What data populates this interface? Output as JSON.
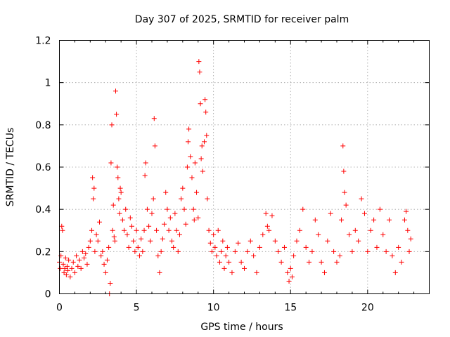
{
  "chart_data": {
    "type": "scatter",
    "title": "Day 307 of 2025, SRMTID for receiver palm",
    "xlabel": "GPS time / hours",
    "ylabel": "SRMTID / TECUs",
    "xlim": [
      0,
      24
    ],
    "ylim": [
      0,
      1.2
    ],
    "xticks": [
      0,
      5,
      10,
      15,
      20
    ],
    "xtick_labels": [
      "0",
      "5",
      "10",
      "15",
      "20"
    ],
    "yticks": [
      0,
      0.2,
      0.4,
      0.6,
      0.8,
      1.0,
      1.2
    ],
    "ytick_labels": [
      "0",
      "0.2",
      "0.4",
      "0.6",
      "0.8",
      "1",
      "1.2"
    ],
    "grid": true,
    "marker": "plus",
    "color": "#ff0000",
    "series": [
      {
        "name": "SRMTID",
        "points": [
          [
            0.0,
            0.15
          ],
          [
            0.05,
            0.12
          ],
          [
            0.1,
            0.18
          ],
          [
            0.15,
            0.32
          ],
          [
            0.2,
            0.3
          ],
          [
            0.25,
            0.14
          ],
          [
            0.3,
            0.1
          ],
          [
            0.35,
            0.12
          ],
          [
            0.4,
            0.17
          ],
          [
            0.45,
            0.09
          ],
          [
            0.5,
            0.13
          ],
          [
            0.55,
            0.11
          ],
          [
            0.6,
            0.16
          ],
          [
            0.7,
            0.08
          ],
          [
            0.8,
            0.12
          ],
          [
            0.9,
            0.15
          ],
          [
            1.0,
            0.1
          ],
          [
            1.1,
            0.18
          ],
          [
            1.2,
            0.13
          ],
          [
            1.3,
            0.16
          ],
          [
            1.4,
            0.12
          ],
          [
            1.5,
            0.2
          ],
          [
            1.6,
            0.17
          ],
          [
            1.7,
            0.19
          ],
          [
            1.8,
            0.14
          ],
          [
            1.9,
            0.22
          ],
          [
            2.0,
            0.25
          ],
          [
            2.1,
            0.3
          ],
          [
            2.15,
            0.55
          ],
          [
            2.2,
            0.45
          ],
          [
            2.25,
            0.5
          ],
          [
            2.3,
            0.2
          ],
          [
            2.4,
            0.28
          ],
          [
            2.5,
            0.25
          ],
          [
            2.6,
            0.34
          ],
          [
            2.7,
            0.18
          ],
          [
            2.8,
            0.2
          ],
          [
            2.9,
            0.14
          ],
          [
            3.0,
            0.1
          ],
          [
            3.1,
            0.16
          ],
          [
            3.2,
            0.22
          ],
          [
            3.25,
            0.0
          ],
          [
            3.3,
            0.05
          ],
          [
            3.35,
            0.62
          ],
          [
            3.4,
            0.8
          ],
          [
            3.45,
            0.3
          ],
          [
            3.5,
            0.42
          ],
          [
            3.55,
            0.27
          ],
          [
            3.6,
            0.25
          ],
          [
            3.65,
            0.96
          ],
          [
            3.7,
            0.85
          ],
          [
            3.75,
            0.6
          ],
          [
            3.8,
            0.55
          ],
          [
            3.85,
            0.45
          ],
          [
            3.9,
            0.38
          ],
          [
            3.95,
            0.5
          ],
          [
            4.0,
            0.48
          ],
          [
            4.1,
            0.35
          ],
          [
            4.2,
            0.3
          ],
          [
            4.3,
            0.4
          ],
          [
            4.4,
            0.28
          ],
          [
            4.5,
            0.22
          ],
          [
            4.6,
            0.36
          ],
          [
            4.7,
            0.32
          ],
          [
            4.8,
            0.25
          ],
          [
            4.9,
            0.2
          ],
          [
            5.0,
            0.3
          ],
          [
            5.1,
            0.22
          ],
          [
            5.2,
            0.18
          ],
          [
            5.3,
            0.26
          ],
          [
            5.4,
            0.2
          ],
          [
            5.5,
            0.3
          ],
          [
            5.55,
            0.56
          ],
          [
            5.6,
            0.62
          ],
          [
            5.7,
            0.4
          ],
          [
            5.8,
            0.32
          ],
          [
            5.9,
            0.25
          ],
          [
            6.0,
            0.38
          ],
          [
            6.1,
            0.45
          ],
          [
            6.15,
            0.83
          ],
          [
            6.2,
            0.7
          ],
          [
            6.3,
            0.3
          ],
          [
            6.4,
            0.18
          ],
          [
            6.5,
            0.1
          ],
          [
            6.6,
            0.2
          ],
          [
            6.7,
            0.26
          ],
          [
            6.8,
            0.33
          ],
          [
            6.9,
            0.48
          ],
          [
            7.0,
            0.4
          ],
          [
            7.1,
            0.3
          ],
          [
            7.2,
            0.36
          ],
          [
            7.3,
            0.25
          ],
          [
            7.4,
            0.22
          ],
          [
            7.5,
            0.38
          ],
          [
            7.6,
            0.3
          ],
          [
            7.7,
            0.2
          ],
          [
            7.8,
            0.28
          ],
          [
            7.9,
            0.45
          ],
          [
            8.0,
            0.5
          ],
          [
            8.1,
            0.4
          ],
          [
            8.2,
            0.33
          ],
          [
            8.3,
            0.6
          ],
          [
            8.35,
            0.72
          ],
          [
            8.4,
            0.78
          ],
          [
            8.5,
            0.65
          ],
          [
            8.6,
            0.55
          ],
          [
            8.7,
            0.4
          ],
          [
            8.75,
            0.35
          ],
          [
            8.8,
            0.62
          ],
          [
            8.9,
            0.48
          ],
          [
            9.0,
            0.36
          ],
          [
            9.05,
            1.1
          ],
          [
            9.1,
            1.05
          ],
          [
            9.15,
            0.9
          ],
          [
            9.2,
            0.64
          ],
          [
            9.25,
            0.7
          ],
          [
            9.3,
            0.58
          ],
          [
            9.4,
            0.72
          ],
          [
            9.45,
            0.92
          ],
          [
            9.5,
            0.86
          ],
          [
            9.55,
            0.75
          ],
          [
            9.6,
            0.45
          ],
          [
            9.7,
            0.3
          ],
          [
            9.8,
            0.24
          ],
          [
            9.9,
            0.2
          ],
          [
            10.0,
            0.28
          ],
          [
            10.1,
            0.22
          ],
          [
            10.2,
            0.18
          ],
          [
            10.3,
            0.3
          ],
          [
            10.4,
            0.15
          ],
          [
            10.5,
            0.2
          ],
          [
            10.6,
            0.25
          ],
          [
            10.7,
            0.12
          ],
          [
            10.8,
            0.18
          ],
          [
            10.9,
            0.22
          ],
          [
            11.0,
            0.15
          ],
          [
            11.2,
            0.1
          ],
          [
            11.4,
            0.2
          ],
          [
            11.6,
            0.24
          ],
          [
            11.8,
            0.15
          ],
          [
            12.0,
            0.12
          ],
          [
            12.2,
            0.2
          ],
          [
            12.4,
            0.25
          ],
          [
            12.6,
            0.18
          ],
          [
            12.8,
            0.1
          ],
          [
            13.0,
            0.22
          ],
          [
            13.2,
            0.28
          ],
          [
            13.4,
            0.38
          ],
          [
            13.5,
            0.32
          ],
          [
            13.6,
            0.3
          ],
          [
            13.8,
            0.37
          ],
          [
            14.0,
            0.25
          ],
          [
            14.2,
            0.2
          ],
          [
            14.4,
            0.15
          ],
          [
            14.6,
            0.22
          ],
          [
            14.8,
            0.1
          ],
          [
            14.9,
            0.06
          ],
          [
            15.0,
            0.12
          ],
          [
            15.1,
            0.08
          ],
          [
            15.2,
            0.18
          ],
          [
            15.4,
            0.25
          ],
          [
            15.6,
            0.3
          ],
          [
            15.8,
            0.4
          ],
          [
            16.0,
            0.22
          ],
          [
            16.2,
            0.15
          ],
          [
            16.4,
            0.2
          ],
          [
            16.6,
            0.35
          ],
          [
            16.8,
            0.28
          ],
          [
            17.0,
            0.15
          ],
          [
            17.2,
            0.1
          ],
          [
            17.4,
            0.25
          ],
          [
            17.6,
            0.38
          ],
          [
            17.8,
            0.2
          ],
          [
            18.0,
            0.15
          ],
          [
            18.2,
            0.18
          ],
          [
            18.3,
            0.35
          ],
          [
            18.4,
            0.7
          ],
          [
            18.45,
            0.58
          ],
          [
            18.5,
            0.48
          ],
          [
            18.6,
            0.42
          ],
          [
            18.8,
            0.28
          ],
          [
            19.0,
            0.2
          ],
          [
            19.2,
            0.3
          ],
          [
            19.4,
            0.25
          ],
          [
            19.6,
            0.45
          ],
          [
            19.8,
            0.38
          ],
          [
            20.0,
            0.2
          ],
          [
            20.2,
            0.3
          ],
          [
            20.4,
            0.35
          ],
          [
            20.6,
            0.22
          ],
          [
            20.8,
            0.4
          ],
          [
            21.0,
            0.28
          ],
          [
            21.2,
            0.2
          ],
          [
            21.4,
            0.35
          ],
          [
            21.6,
            0.18
          ],
          [
            21.8,
            0.1
          ],
          [
            22.0,
            0.22
          ],
          [
            22.2,
            0.15
          ],
          [
            22.4,
            0.35
          ],
          [
            22.5,
            0.39
          ],
          [
            22.6,
            0.3
          ],
          [
            22.7,
            0.2
          ],
          [
            22.8,
            0.26
          ]
        ]
      }
    ]
  }
}
